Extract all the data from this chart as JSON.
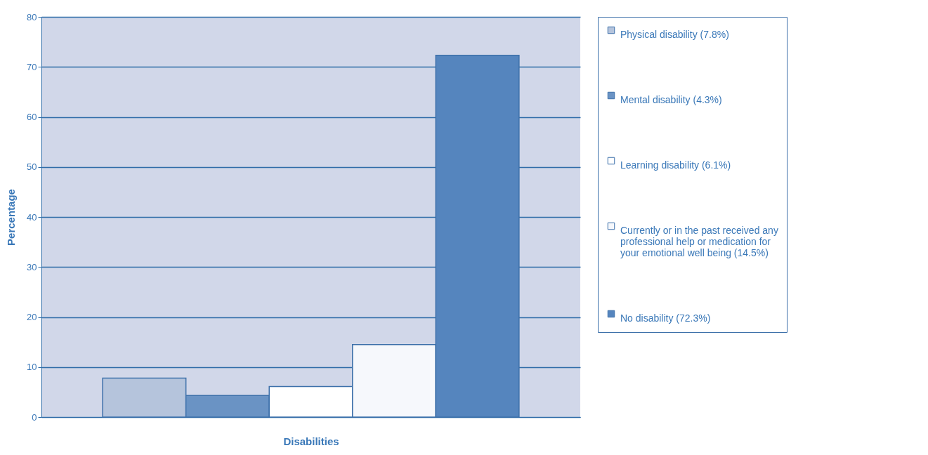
{
  "chart_data": {
    "type": "bar",
    "xlabel": "Disabilities",
    "ylabel": "Percentage",
    "categories": [
      null
    ],
    "series": [
      {
        "name": "Physical disability (7.8%)",
        "color": "#b5c4dc",
        "values": [
          7.8
        ]
      },
      {
        "name": "Mental disability (4.3%)",
        "color": "#6a93c4",
        "values": [
          4.3
        ]
      },
      {
        "name": "Learning disability (6.1%)",
        "color": "#ffffff",
        "values": [
          6.1
        ]
      },
      {
        "name": "Currently or in the past received any professional help or medication for your emotional well being (14.5%)",
        "color": "#f6f8fc",
        "values": [
          14.5
        ]
      },
      {
        "name": "No disability (72.3%)",
        "color": "#5585be",
        "values": [
          72.3
        ]
      }
    ],
    "ylim": [
      0,
      80
    ],
    "yticks": [
      0,
      10,
      20,
      30,
      40,
      50,
      60,
      70,
      80
    ],
    "grid": "y",
    "legend": "right"
  }
}
